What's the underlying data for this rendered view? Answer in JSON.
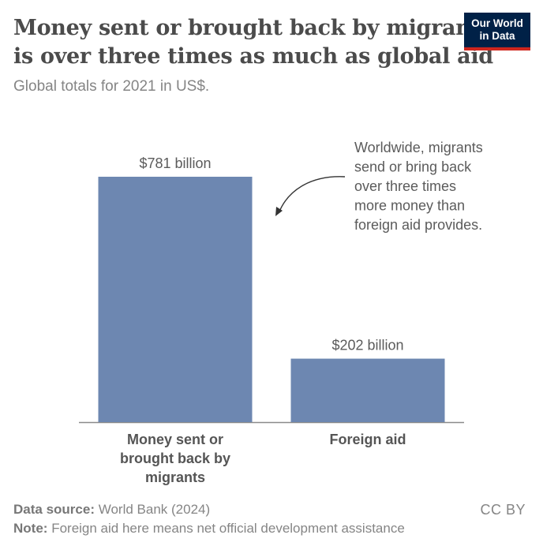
{
  "header": {
    "title_line1": "Money sent or brought back by migrants",
    "title_line2": "is over three times as much as global aid",
    "subtitle": "Global totals for 2021 in US$.",
    "logo_line1": "Our World",
    "logo_line2": "in Data"
  },
  "chart_data": {
    "type": "bar",
    "categories": [
      "Money sent or brought back by migrants",
      "Foreign aid"
    ],
    "category_label_lines": [
      [
        "Money sent or",
        "brought back by",
        "migrants"
      ],
      [
        "Foreign aid"
      ]
    ],
    "values": [
      781,
      202
    ],
    "data_labels": [
      "$781 billion",
      "$202 billion"
    ],
    "annotation_lines": [
      "Worldwide, migrants",
      "send or bring back",
      "over three times",
      "more money than",
      "foreign aid provides."
    ],
    "bar_color": "#6d87b1",
    "axis_color": "#8a8a8a",
    "ylim": [
      0,
      781
    ],
    "grid": false
  },
  "footer": {
    "source_label": "Data source:",
    "source_value": "World Bank (2024)",
    "note_label": "Note:",
    "note_value": "Foreign aid here means net official development assistance",
    "license": "CC BY"
  }
}
